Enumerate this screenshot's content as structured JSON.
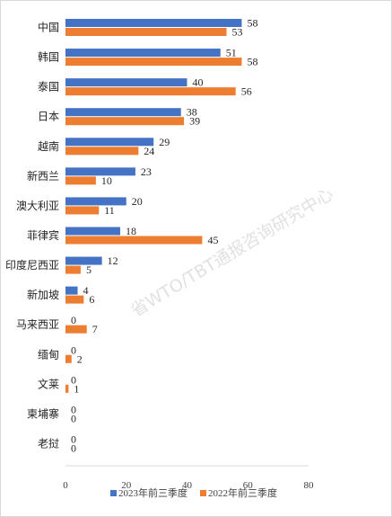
{
  "chart_data": {
    "type": "bar",
    "orientation": "horizontal",
    "categories": [
      "中国",
      "韩国",
      "泰国",
      "日本",
      "越南",
      "新西兰",
      "澳大利亚",
      "菲律宾",
      "印度尼西亚",
      "新加坡",
      "马来西亚",
      "缅甸",
      "文莱",
      "柬埔寨",
      "老挝"
    ],
    "series": [
      {
        "name": "2023年前三季度",
        "color": "#4472c4",
        "values": [
          58,
          51,
          40,
          38,
          29,
          23,
          20,
          18,
          12,
          4,
          0,
          0,
          0,
          0,
          0
        ]
      },
      {
        "name": "2022年前三季度",
        "color": "#ed7d31",
        "values": [
          53,
          58,
          56,
          39,
          24,
          10,
          11,
          45,
          5,
          6,
          7,
          2,
          1,
          0,
          0
        ]
      }
    ],
    "xlim": [
      0,
      80
    ],
    "xticks": [
      0,
      20,
      40,
      60,
      80
    ],
    "grid": false,
    "legend_position": "bottom",
    "watermark": "省WTO/TBT通报咨询研究中心"
  }
}
